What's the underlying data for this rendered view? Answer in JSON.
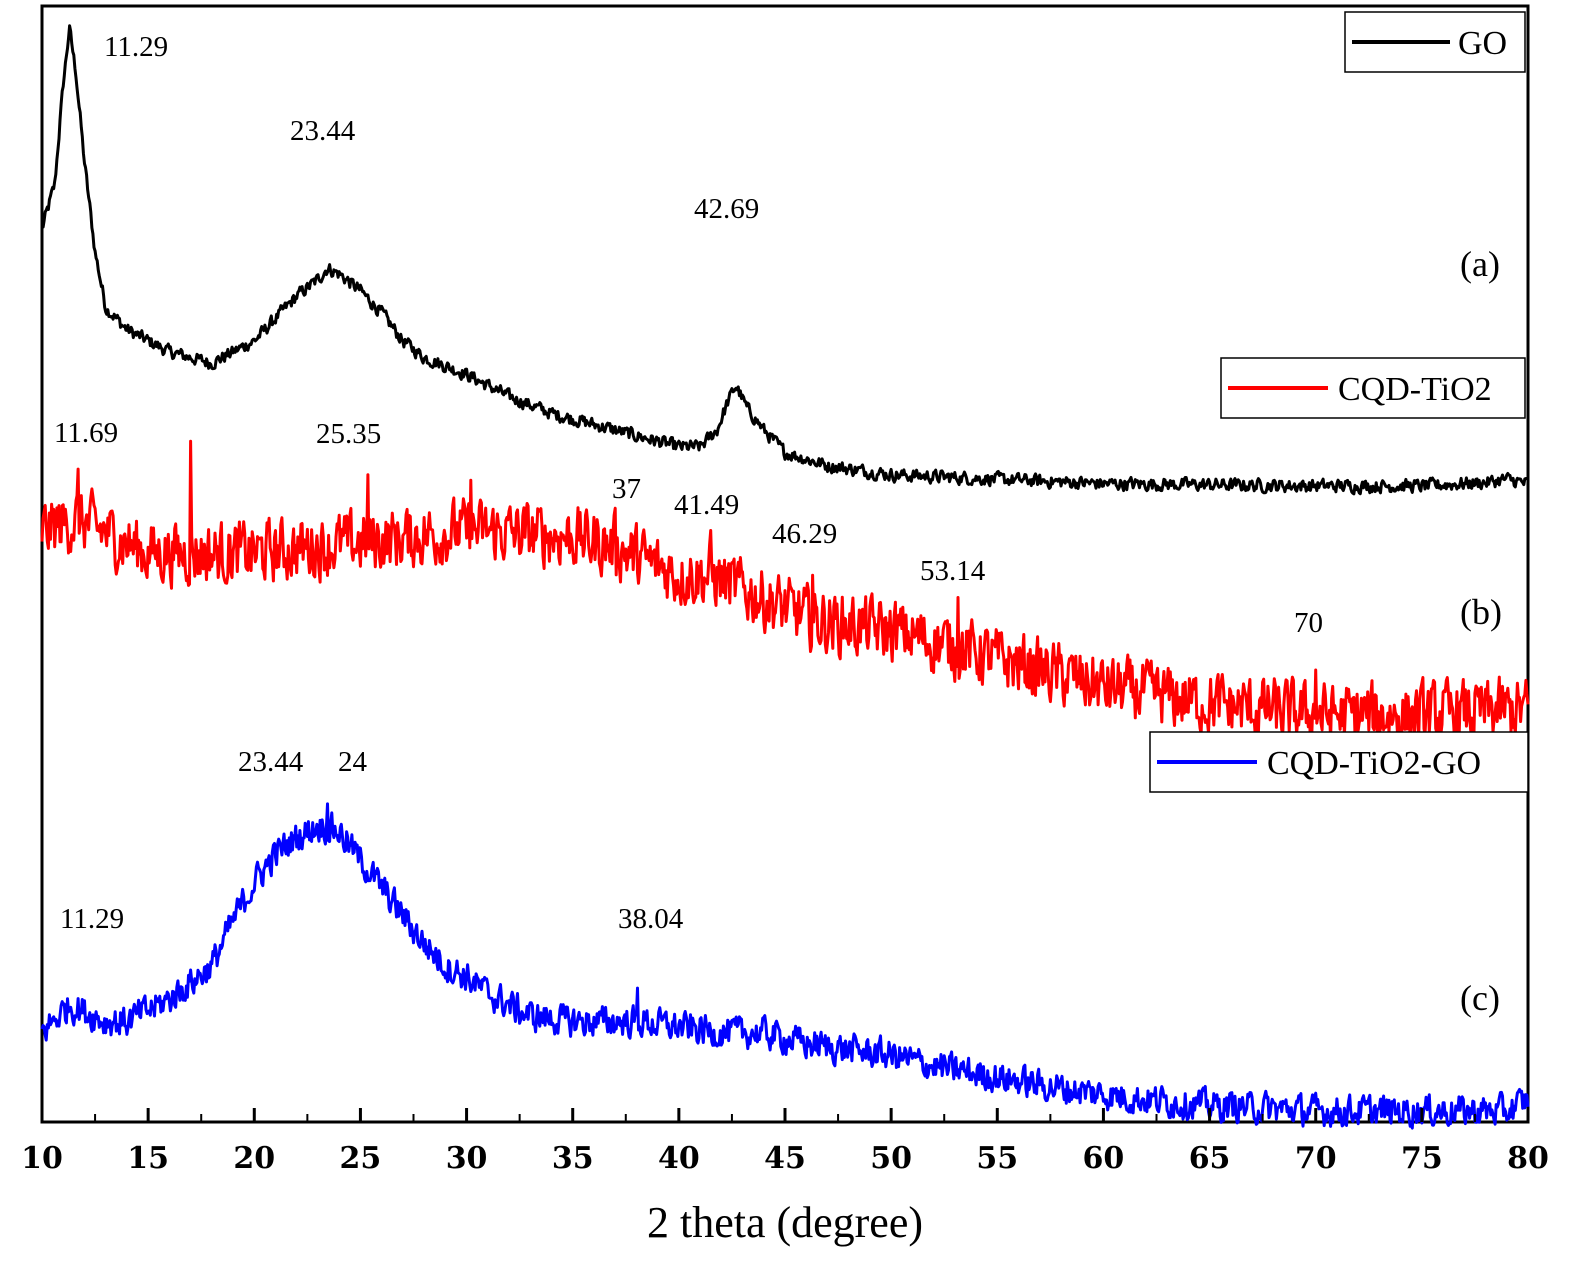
{
  "chart_data": {
    "type": "line",
    "title": "",
    "xlabel": "2 theta (degree)",
    "ylabel": "",
    "xlim": [
      10,
      80
    ],
    "xticks": [
      10,
      15,
      20,
      25,
      30,
      35,
      40,
      45,
      50,
      55,
      60,
      65,
      70,
      75,
      80
    ],
    "xtick_labels": [
      "10",
      "15",
      "20",
      "25",
      "30",
      "35",
      "40",
      "45",
      "50",
      "55",
      "60",
      "65",
      "70",
      "75",
      "80"
    ],
    "y_axis": "relative intensity (arbitrary units, stacked offsets)",
    "ylim": [
      0,
      100
    ],
    "legend": "top-right of each panel",
    "series": [
      {
        "name": "GO",
        "panel": "(a)",
        "color": "#000000",
        "noise": 0.8,
        "points": [
          [
            10,
            80
          ],
          [
            10.6,
            84
          ],
          [
            11.0,
            93
          ],
          [
            11.29,
            98
          ],
          [
            11.6,
            94
          ],
          [
            12.0,
            86
          ],
          [
            12.5,
            78
          ],
          [
            13.0,
            73
          ],
          [
            14.0,
            71
          ],
          [
            15,
            70
          ],
          [
            16,
            69
          ],
          [
            17,
            68.5
          ],
          [
            18,
            68
          ],
          [
            19,
            69
          ],
          [
            20,
            70
          ],
          [
            21,
            72
          ],
          [
            22,
            74
          ],
          [
            23,
            75.5
          ],
          [
            23.44,
            76.5
          ],
          [
            24,
            76
          ],
          [
            25,
            74.5
          ],
          [
            26,
            72.5
          ],
          [
            27,
            70
          ],
          [
            28,
            68.5
          ],
          [
            30,
            67
          ],
          [
            32,
            65
          ],
          [
            34,
            63.5
          ],
          [
            36,
            62.5
          ],
          [
            38,
            61.5
          ],
          [
            40,
            60.5
          ],
          [
            41,
            60.5
          ],
          [
            41.8,
            62
          ],
          [
            42.3,
            64.5
          ],
          [
            42.69,
            66
          ],
          [
            43.2,
            64
          ],
          [
            44,
            62
          ],
          [
            45,
            60
          ],
          [
            47,
            58.8
          ],
          [
            50,
            58
          ],
          [
            55,
            57.6
          ],
          [
            60,
            57.2
          ],
          [
            65,
            57.1
          ],
          [
            70,
            57
          ],
          [
            75,
            57
          ],
          [
            78,
            57.3
          ],
          [
            79,
            57.6
          ],
          [
            80,
            57.2
          ]
        ]
      },
      {
        "name": "CQD-TiO2",
        "panel": "(b)",
        "color": "#ff0000",
        "noise": 3.8,
        "points": [
          [
            10,
            53
          ],
          [
            11.69,
            54
          ],
          [
            15,
            51
          ],
          [
            20,
            51
          ],
          [
            25.35,
            52
          ],
          [
            30,
            53
          ],
          [
            35,
            52.5
          ],
          [
            37,
            51.5
          ],
          [
            40,
            49
          ],
          [
            41.49,
            49
          ],
          [
            45,
            46
          ],
          [
            46.29,
            45
          ],
          [
            50,
            44
          ],
          [
            53.14,
            42.5
          ],
          [
            55,
            41.5
          ],
          [
            60,
            39
          ],
          [
            65,
            37.5
          ],
          [
            70,
            36.5
          ],
          [
            75,
            36.5
          ],
          [
            80,
            37
          ]
        ],
        "peaks": [
          [
            11.69,
            58.5
          ],
          [
            17,
            61
          ],
          [
            25.35,
            58
          ],
          [
            30.2,
            57.5
          ],
          [
            37,
            55
          ],
          [
            41.49,
            53
          ],
          [
            46.29,
            49
          ],
          [
            53.14,
            47
          ],
          [
            70,
            40.5
          ]
        ]
      },
      {
        "name": "CQD-TiO2-GO",
        "panel": "(c)",
        "color": "#0000ff",
        "noise": 1.9,
        "points": [
          [
            10,
            8
          ],
          [
            11.29,
            10.5
          ],
          [
            13,
            9
          ],
          [
            14,
            9
          ],
          [
            15,
            10
          ],
          [
            16,
            11
          ],
          [
            17,
            12.5
          ],
          [
            18,
            14
          ],
          [
            19,
            18
          ],
          [
            20,
            21.5
          ],
          [
            21,
            24
          ],
          [
            22,
            25.5
          ],
          [
            23,
            26.5
          ],
          [
            23.44,
            26.5
          ],
          [
            24,
            26
          ],
          [
            25,
            23.5
          ],
          [
            26,
            21
          ],
          [
            27,
            18.5
          ],
          [
            28,
            16
          ],
          [
            29,
            14
          ],
          [
            30,
            13
          ],
          [
            31,
            11.5
          ],
          [
            32,
            10.5
          ],
          [
            33,
            9.5
          ],
          [
            35,
            9
          ],
          [
            38.04,
            9
          ],
          [
            40,
            8.5
          ],
          [
            42,
            8
          ],
          [
            44,
            8
          ],
          [
            46,
            7
          ],
          [
            48,
            6.5
          ],
          [
            50,
            6
          ],
          [
            52,
            5
          ],
          [
            55,
            4
          ],
          [
            58,
            3
          ],
          [
            60,
            2.5
          ],
          [
            62,
            2
          ],
          [
            65,
            1.5
          ],
          [
            70,
            1
          ],
          [
            75,
            1
          ],
          [
            79,
            1
          ],
          [
            80,
            2
          ]
        ],
        "peaks": [
          [
            38.04,
            12
          ],
          [
            23.44,
            28.5
          ]
        ]
      }
    ],
    "annotations": [
      {
        "text": "11.29",
        "series": "GO",
        "x": 11.29
      },
      {
        "text": "23.44",
        "series": "GO",
        "x": 23.44
      },
      {
        "text": "42.69",
        "series": "GO",
        "x": 42.69
      },
      {
        "text": "11.69",
        "series": "CQD-TiO2",
        "x": 11.69
      },
      {
        "text": "25.35",
        "series": "CQD-TiO2",
        "x": 25.35
      },
      {
        "text": "37",
        "series": "CQD-TiO2",
        "x": 37
      },
      {
        "text": "41.49",
        "series": "CQD-TiO2",
        "x": 41.49
      },
      {
        "text": "46.29",
        "series": "CQD-TiO2",
        "x": 46.29
      },
      {
        "text": "53.14",
        "series": "CQD-TiO2",
        "x": 53.14
      },
      {
        "text": "70",
        "series": "CQD-TiO2",
        "x": 70
      },
      {
        "text": "23.44",
        "series": "CQD-TiO2-GO",
        "x": 23.44
      },
      {
        "text": "24",
        "series": "CQD-TiO2-GO",
        "x": 24
      },
      {
        "text": "11.29",
        "series": "CQD-TiO2-GO",
        "x": 11.29
      },
      {
        "text": "38.04",
        "series": "CQD-TiO2-GO",
        "x": 38.04
      }
    ],
    "panel_labels": [
      "(a)",
      "(b)",
      "(c)"
    ]
  }
}
